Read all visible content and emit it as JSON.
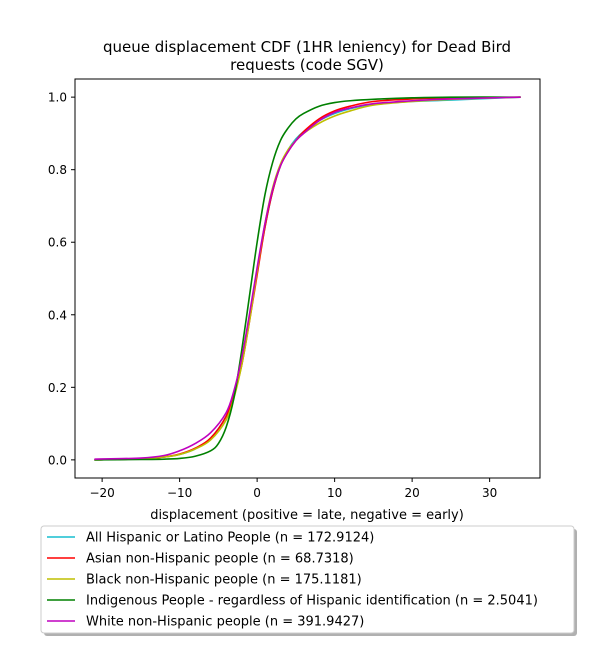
{
  "chart_data": {
    "type": "line",
    "title_lines": [
      "queue displacement CDF (1HR leniency) for Dead Bird",
      "requests (code SGV)"
    ],
    "xlabel": "displacement (positive = late, negative = early)",
    "ylabel": "",
    "xlim": [
      -23.5,
      36.5
    ],
    "ylim": [
      -0.05,
      1.05
    ],
    "xticks": [
      -20,
      -10,
      0,
      10,
      20,
      30
    ],
    "yticks": [
      0.0,
      0.2,
      0.4,
      0.6,
      0.8,
      1.0
    ],
    "xtick_labels": [
      "−20",
      "−10",
      "0",
      "10",
      "20",
      "30"
    ],
    "ytick_labels": [
      "0.0",
      "0.2",
      "0.4",
      "0.6",
      "0.8",
      "1.0"
    ],
    "grid": false,
    "legend_position": "below-plot",
    "series": [
      {
        "name": "All Hispanic or Latino People (n = 172.9124)",
        "color": "#17becf",
        "x": [
          -21,
          -15,
          -12,
          -10,
          -8,
          -6,
          -4,
          -3,
          -2,
          -1,
          0,
          1,
          2,
          3,
          4,
          5,
          6,
          8,
          10,
          12,
          15,
          20,
          25,
          34
        ],
        "y": [
          0.0,
          0.003,
          0.008,
          0.015,
          0.03,
          0.06,
          0.12,
          0.18,
          0.27,
          0.39,
          0.52,
          0.64,
          0.74,
          0.81,
          0.855,
          0.885,
          0.905,
          0.935,
          0.955,
          0.968,
          0.98,
          0.988,
          0.992,
          1.0
        ]
      },
      {
        "name": "Asian non-Hispanic people (n = 68.7318)",
        "color": "#ff0000",
        "x": [
          -21,
          -15,
          -12,
          -10,
          -8,
          -6,
          -4,
          -3,
          -2,
          -1,
          0,
          1,
          2,
          3,
          4,
          5,
          6,
          8,
          10,
          12,
          15,
          20,
          25,
          34
        ],
        "y": [
          0.0,
          0.003,
          0.008,
          0.016,
          0.032,
          0.06,
          0.12,
          0.18,
          0.26,
          0.38,
          0.51,
          0.64,
          0.74,
          0.81,
          0.85,
          0.88,
          0.905,
          0.94,
          0.962,
          0.975,
          0.988,
          0.995,
          0.998,
          1.0
        ]
      },
      {
        "name": "Black non-Hispanic people (n = 175.1181)",
        "color": "#bfbf00",
        "x": [
          -21,
          -15,
          -12,
          -10,
          -8,
          -6,
          -4,
          -3,
          -2,
          -1,
          0,
          1,
          2,
          3,
          4,
          5,
          6,
          8,
          10,
          12,
          15,
          20,
          25,
          34
        ],
        "y": [
          0.0,
          0.003,
          0.008,
          0.015,
          0.03,
          0.055,
          0.11,
          0.17,
          0.26,
          0.38,
          0.52,
          0.65,
          0.75,
          0.815,
          0.855,
          0.88,
          0.9,
          0.928,
          0.948,
          0.962,
          0.978,
          0.988,
          0.994,
          1.0
        ]
      },
      {
        "name": "Indigenous People - regardless of Hispanic identification (n = 2.5041)",
        "color": "#008000",
        "x": [
          -21,
          -15,
          -12,
          -10,
          -8,
          -6,
          -5,
          -4,
          -3,
          -2,
          -1,
          0,
          1,
          2,
          3,
          4,
          5,
          6,
          8,
          10,
          12,
          15,
          20,
          25,
          34
        ],
        "y": [
          0.0,
          0.001,
          0.002,
          0.004,
          0.01,
          0.025,
          0.045,
          0.09,
          0.17,
          0.3,
          0.45,
          0.6,
          0.73,
          0.82,
          0.88,
          0.915,
          0.94,
          0.955,
          0.975,
          0.985,
          0.99,
          0.994,
          0.998,
          1.0,
          1.0
        ]
      },
      {
        "name": "White non-Hispanic people (n = 391.9427)",
        "color": "#bf00bf",
        "x": [
          -21,
          -15,
          -12,
          -10,
          -8,
          -6,
          -4,
          -3,
          -2,
          -1,
          0,
          1,
          2,
          3,
          4,
          5,
          6,
          8,
          10,
          12,
          15,
          20,
          25,
          34
        ],
        "y": [
          0.002,
          0.005,
          0.012,
          0.025,
          0.045,
          0.075,
          0.13,
          0.19,
          0.28,
          0.4,
          0.53,
          0.65,
          0.745,
          0.81,
          0.85,
          0.88,
          0.9,
          0.935,
          0.958,
          0.97,
          0.982,
          0.99,
          0.995,
          1.0
        ]
      }
    ]
  }
}
